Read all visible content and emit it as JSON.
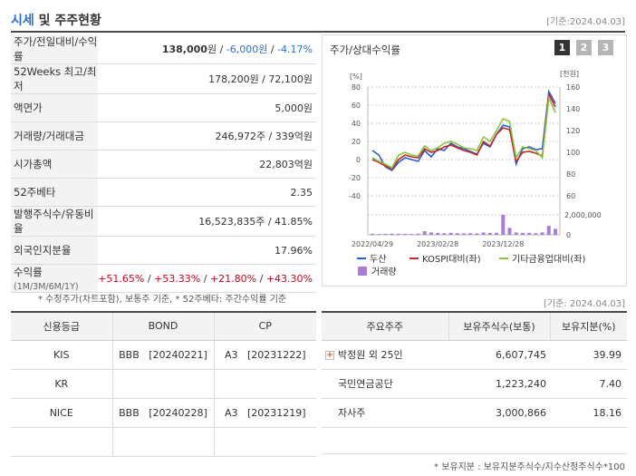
{
  "header": {
    "title_main": "시세",
    "title_rest": " 및 주주현황",
    "date": "[기준:2024.04.03]"
  },
  "summary": {
    "rows": [
      {
        "label": "주가/전일대비/수익률",
        "price": "138,000",
        "unit": "원",
        "sep1": " / ",
        "change": "-6,000원",
        "sep2": " / ",
        "rate": "-4.17%"
      },
      {
        "label": "52Weeks 최고/최저",
        "value": "178,200원 / 72,100원"
      },
      {
        "label": "액면가",
        "value": "5,000원"
      },
      {
        "label": "거래량/거래대금",
        "value": "246,972주 / 339억원"
      },
      {
        "label": "시가총액",
        "value": "22,803억원"
      },
      {
        "label": "52주베타",
        "value": "2.35"
      },
      {
        "label": "발행주식수/유동비율",
        "value": "16,523,835주 / 41.85%"
      },
      {
        "label": "외국인지분율",
        "value": "17.96%"
      },
      {
        "label": "수익률",
        "label_sub": "(1M/3M/6M/1Y)",
        "r1": "+51.65%",
        "r2": "+53.33%",
        "r3": "+21.80%",
        "r4": "+43.30%",
        "sep": " / "
      }
    ],
    "note": "* 수정주가(차트포함), 보통주 기준, * 52주베타: 주간수익률 기준"
  },
  "chart_panel": {
    "title": "주가/상대수익률",
    "tabs": [
      "1",
      "2",
      "3"
    ],
    "active_tab": "1"
  },
  "chart_data": {
    "type": "line",
    "left_axis_label": "[%]",
    "right_axis_label": "[천원]",
    "left_ticks": [
      "80",
      "60",
      "40",
      "20",
      "0",
      "-20",
      "-40"
    ],
    "right_ticks": [
      "160",
      "140",
      "120",
      "100",
      "80",
      "60"
    ],
    "volume_ticks": [
      "2,000,000",
      "0"
    ],
    "x_ticks": [
      "2022/04/29",
      "2023/02/28",
      "2023/12/28"
    ],
    "ylim_left": [
      -40,
      80
    ],
    "ylim_right": [
      60,
      160
    ],
    "series": [
      {
        "name": "두산",
        "color": "#2a5cd6",
        "values": [
          10,
          5,
          -8,
          -12,
          -3,
          2,
          0,
          -2,
          10,
          3,
          12,
          10,
          18,
          14,
          12,
          9,
          6,
          18,
          14,
          28,
          38,
          36,
          -5,
          12,
          14,
          11,
          12,
          75,
          62
        ]
      },
      {
        "name": "KOSPI대비(좌)",
        "color": "#c62828",
        "values": [
          0,
          -3,
          -7,
          -10,
          0,
          5,
          3,
          2,
          12,
          8,
          10,
          14,
          16,
          13,
          10,
          8,
          5,
          20,
          15,
          28,
          35,
          33,
          -2,
          8,
          9,
          7,
          4,
          72,
          58
        ]
      },
      {
        "name": "기타금융업대비(좌)",
        "color": "#8cc63f",
        "values": [
          2,
          -2,
          -5,
          -9,
          5,
          8,
          5,
          4,
          15,
          10,
          13,
          18,
          20,
          17,
          13,
          12,
          10,
          25,
          20,
          32,
          45,
          42,
          2,
          14,
          12,
          10,
          2,
          68,
          52
        ]
      }
    ],
    "volume": {
      "name": "거래량",
      "color": "#a97ed6",
      "values": [
        0.05,
        0.04,
        0.05,
        0.06,
        0.05,
        0.05,
        0.04,
        0.06,
        0.18,
        0.12,
        0.1,
        0.08,
        0.1,
        0.08,
        0.07,
        0.08,
        0.07,
        0.12,
        0.1,
        0.1,
        1.0,
        0.35,
        0.12,
        0.1,
        0.1,
        0.08,
        0.12,
        0.45,
        0.3
      ]
    }
  },
  "credit": {
    "headers": [
      "신용등급",
      "BOND",
      "CP"
    ],
    "rows": [
      {
        "agency": "KIS",
        "bond": "BBB   [20240221]",
        "cp": "A3   [20231222]"
      },
      {
        "agency": "KR",
        "bond": "",
        "cp": ""
      },
      {
        "agency": "NICE",
        "bond": "BBB   [20240228]",
        "cp": "A3   [20231219]"
      }
    ]
  },
  "holders": {
    "date": "[기준: 2024.04.03]",
    "headers": [
      "주요주주",
      "보유주식수(보통)",
      "보유지분(%)"
    ],
    "rows": [
      {
        "name": "박정원 외 25인",
        "shares": "6,607,745",
        "ratio": "39.99",
        "expandable": true
      },
      {
        "name": "국민연금공단",
        "shares": "1,223,240",
        "ratio": "7.40",
        "expandable": false
      },
      {
        "name": "자사주",
        "shares": "3,000,866",
        "ratio": "18.16",
        "expandable": false
      }
    ],
    "note": "* 보유지분 : 보유지분주식수/지수산정주식수*100"
  }
}
